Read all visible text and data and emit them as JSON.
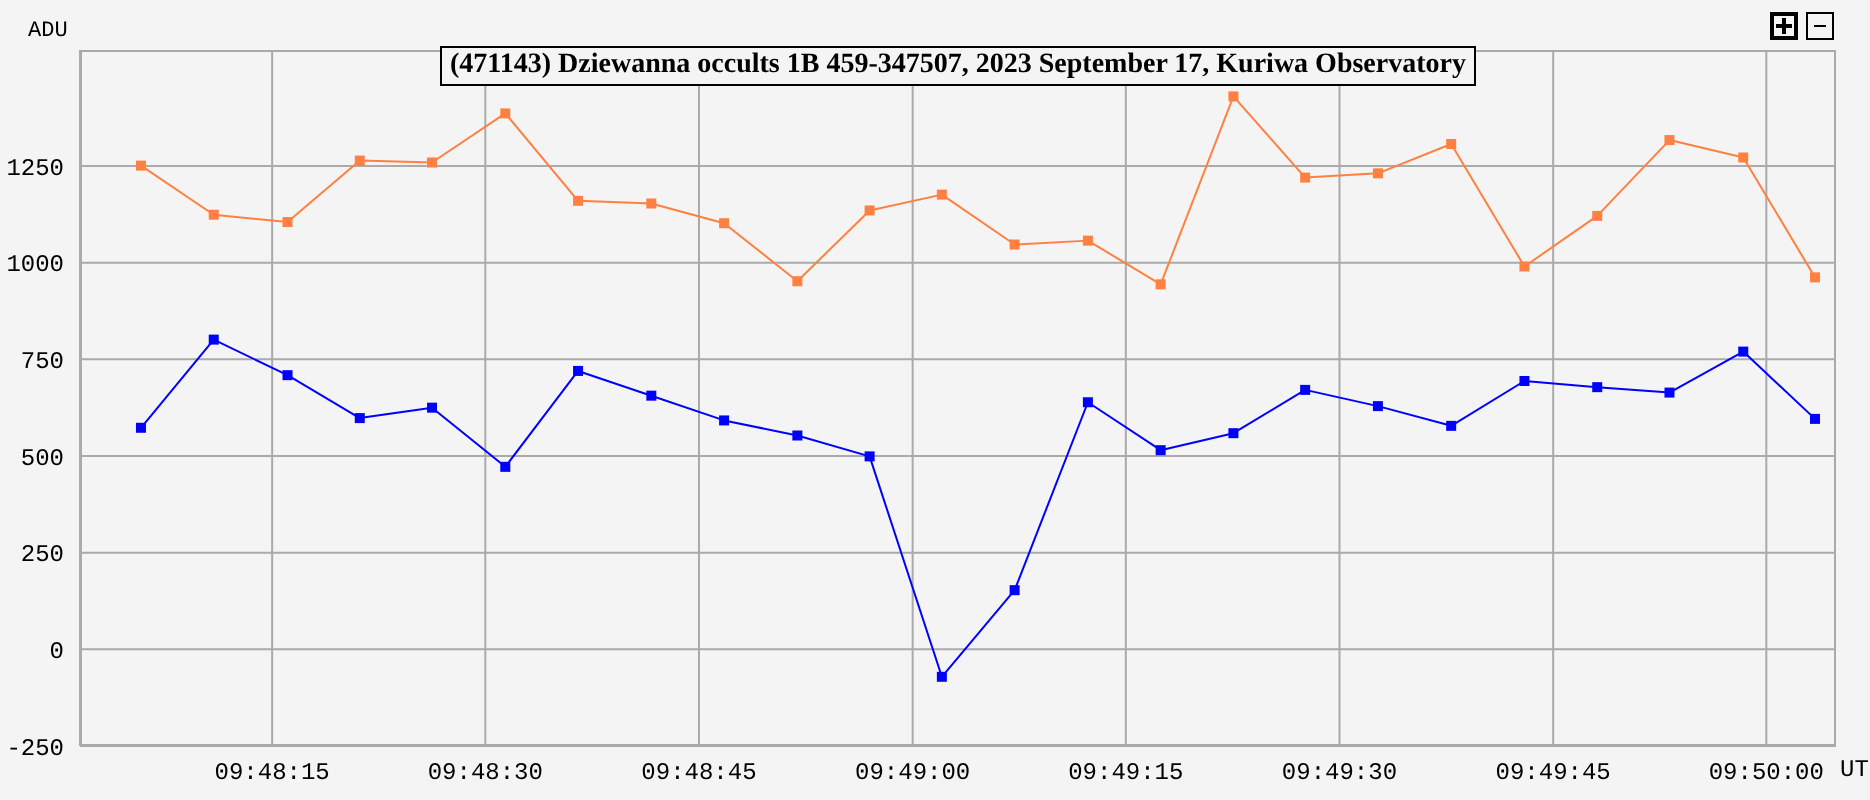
{
  "chart_data": {
    "type": "line",
    "title": "(471143) Dziewanna occults 1B 459-347507, 2023 September 17, Kuriwa Observatory",
    "xlabel": "UT",
    "ylabel": "ADU",
    "x": [
      9.80161,
      9.80303,
      9.80447,
      9.80588,
      9.80729,
      9.80872,
      9.81014,
      9.81157,
      9.81299,
      9.81442,
      9.81583,
      9.81724,
      9.81866,
      9.82009,
      9.82151,
      9.82293,
      9.82433,
      9.82575,
      9.82718,
      9.82861,
      9.83003,
      9.83144,
      9.83288,
      9.83428
    ],
    "series": [
      {
        "color": "#ff8040",
        "values": [
          1251,
          1124,
          1105,
          1264,
          1259,
          1386,
          1160,
          1153,
          1102,
          952,
          1135,
          1176,
          1047,
          1057,
          944,
          1430,
          1220,
          1231,
          1307,
          990,
          1121,
          1317,
          1272,
          962
        ]
      },
      {
        "color": "#0000ff",
        "values": [
          573,
          801,
          709,
          598,
          625,
          472,
          720,
          656,
          592,
          553,
          499,
          -71,
          153,
          639,
          515,
          559,
          671,
          629,
          578,
          694,
          678,
          664,
          770,
          596
        ]
      }
    ],
    "xlim": [
      9.80042,
      9.83469
    ],
    "xticks": [
      {
        "value": 9.80417,
        "label": "09:48:15"
      },
      {
        "value": 9.80833,
        "label": "09:48:30"
      },
      {
        "value": 9.8125,
        "label": "09:48:45"
      },
      {
        "value": 9.81667,
        "label": "09:49:00"
      },
      {
        "value": 9.82083,
        "label": "09:49:15"
      },
      {
        "value": 9.825,
        "label": "09:49:30"
      },
      {
        "value": 9.82917,
        "label": "09:49:45"
      },
      {
        "value": 9.83333,
        "label": "09:50:00"
      }
    ],
    "ylim": [
      -250,
      1550
    ],
    "yticks": [
      -250,
      0,
      250,
      500,
      750,
      1000,
      1250
    ],
    "grid": true,
    "marker": "square",
    "line_style": "solid"
  }
}
